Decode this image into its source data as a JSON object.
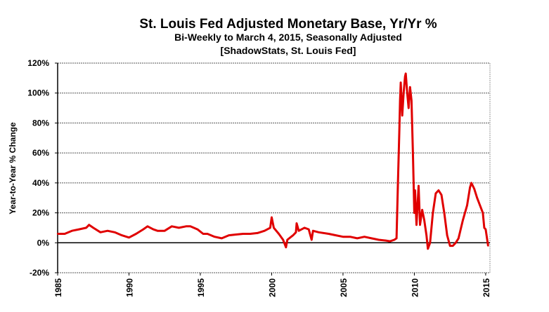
{
  "chart_data": {
    "type": "line",
    "title": "St. Louis Fed Adjusted Monetary Base, Yr/Yr %",
    "subtitle": "Bi-Weekly to March 4, 2015, Seasonally Adjusted",
    "source": "[ShadowStats, St. Louis Fed]",
    "xlabel": "",
    "ylabel": "Year-to-Year % Change",
    "xlim": [
      1985,
      2015.3
    ],
    "ylim": [
      -20,
      120
    ],
    "grid": true,
    "xticks": [
      "1985",
      "1990",
      "1995",
      "2000",
      "2005",
      "2010",
      "2015"
    ],
    "yticks": [
      "-20%",
      "0%",
      "20%",
      "40%",
      "60%",
      "80%",
      "100%",
      "120%"
    ],
    "line_color": "#e00000",
    "series": [
      {
        "name": "Adjusted Monetary Base Yr/Yr %",
        "x": [
          1985.0,
          1985.5,
          1986.0,
          1986.5,
          1987.0,
          1987.2,
          1987.5,
          1988.0,
          1988.5,
          1989.0,
          1989.5,
          1990.0,
          1990.5,
          1991.0,
          1991.3,
          1991.7,
          1992.0,
          1992.5,
          1993.0,
          1993.5,
          1994.0,
          1994.3,
          1994.8,
          1995.2,
          1995.5,
          1996.0,
          1996.5,
          1997.0,
          1997.5,
          1998.0,
          1998.5,
          1999.0,
          1999.5,
          1999.9,
          2000.0,
          2000.15,
          2000.5,
          2000.8,
          2001.0,
          2001.1,
          2001.5,
          2001.7,
          2001.75,
          2001.9,
          2002.3,
          2002.6,
          2002.8,
          2002.9,
          2003.3,
          2004.0,
          2004.5,
          2005.0,
          2005.5,
          2006.0,
          2006.5,
          2007.0,
          2007.5,
          2008.0,
          2008.3,
          2008.6,
          2008.75,
          2008.85,
          2008.95,
          2009.0,
          2009.05,
          2009.15,
          2009.25,
          2009.35,
          2009.4,
          2009.5,
          2009.6,
          2009.7,
          2009.8,
          2009.9,
          2010.0,
          2010.05,
          2010.15,
          2010.3,
          2010.4,
          2010.55,
          2010.7,
          2010.85,
          2010.95,
          2011.1,
          2011.3,
          2011.5,
          2011.7,
          2011.9,
          2012.1,
          2012.3,
          2012.5,
          2012.7,
          2012.9,
          2013.1,
          2013.4,
          2013.7,
          2013.9,
          2014.0,
          2014.2,
          2014.4,
          2014.6,
          2014.8,
          2014.9,
          2015.0,
          2015.17
        ],
        "values": [
          6,
          6,
          8,
          9,
          10,
          12,
          10,
          7,
          8,
          7,
          5,
          3.5,
          6,
          9,
          11,
          9,
          8,
          8,
          11,
          10,
          11,
          11,
          9,
          6,
          6,
          4,
          3,
          5,
          5.5,
          6,
          6,
          6.5,
          8,
          10,
          17,
          10,
          6,
          2,
          -3,
          2,
          5,
          7,
          13,
          8,
          10,
          9,
          2,
          8,
          7,
          6,
          5,
          4,
          4,
          3,
          4,
          3,
          2,
          1.5,
          1,
          2,
          3,
          40,
          75,
          95,
          107,
          85,
          100,
          111,
          113,
          100,
          90,
          104,
          95,
          60,
          20,
          35,
          12,
          38,
          12,
          22,
          15,
          5,
          -4,
          0,
          20,
          33,
          35,
          32,
          20,
          5,
          -2,
          -2,
          0,
          3,
          15,
          25,
          37,
          40,
          36,
          30,
          25,
          20,
          10,
          9,
          -2
        ]
      }
    ]
  }
}
